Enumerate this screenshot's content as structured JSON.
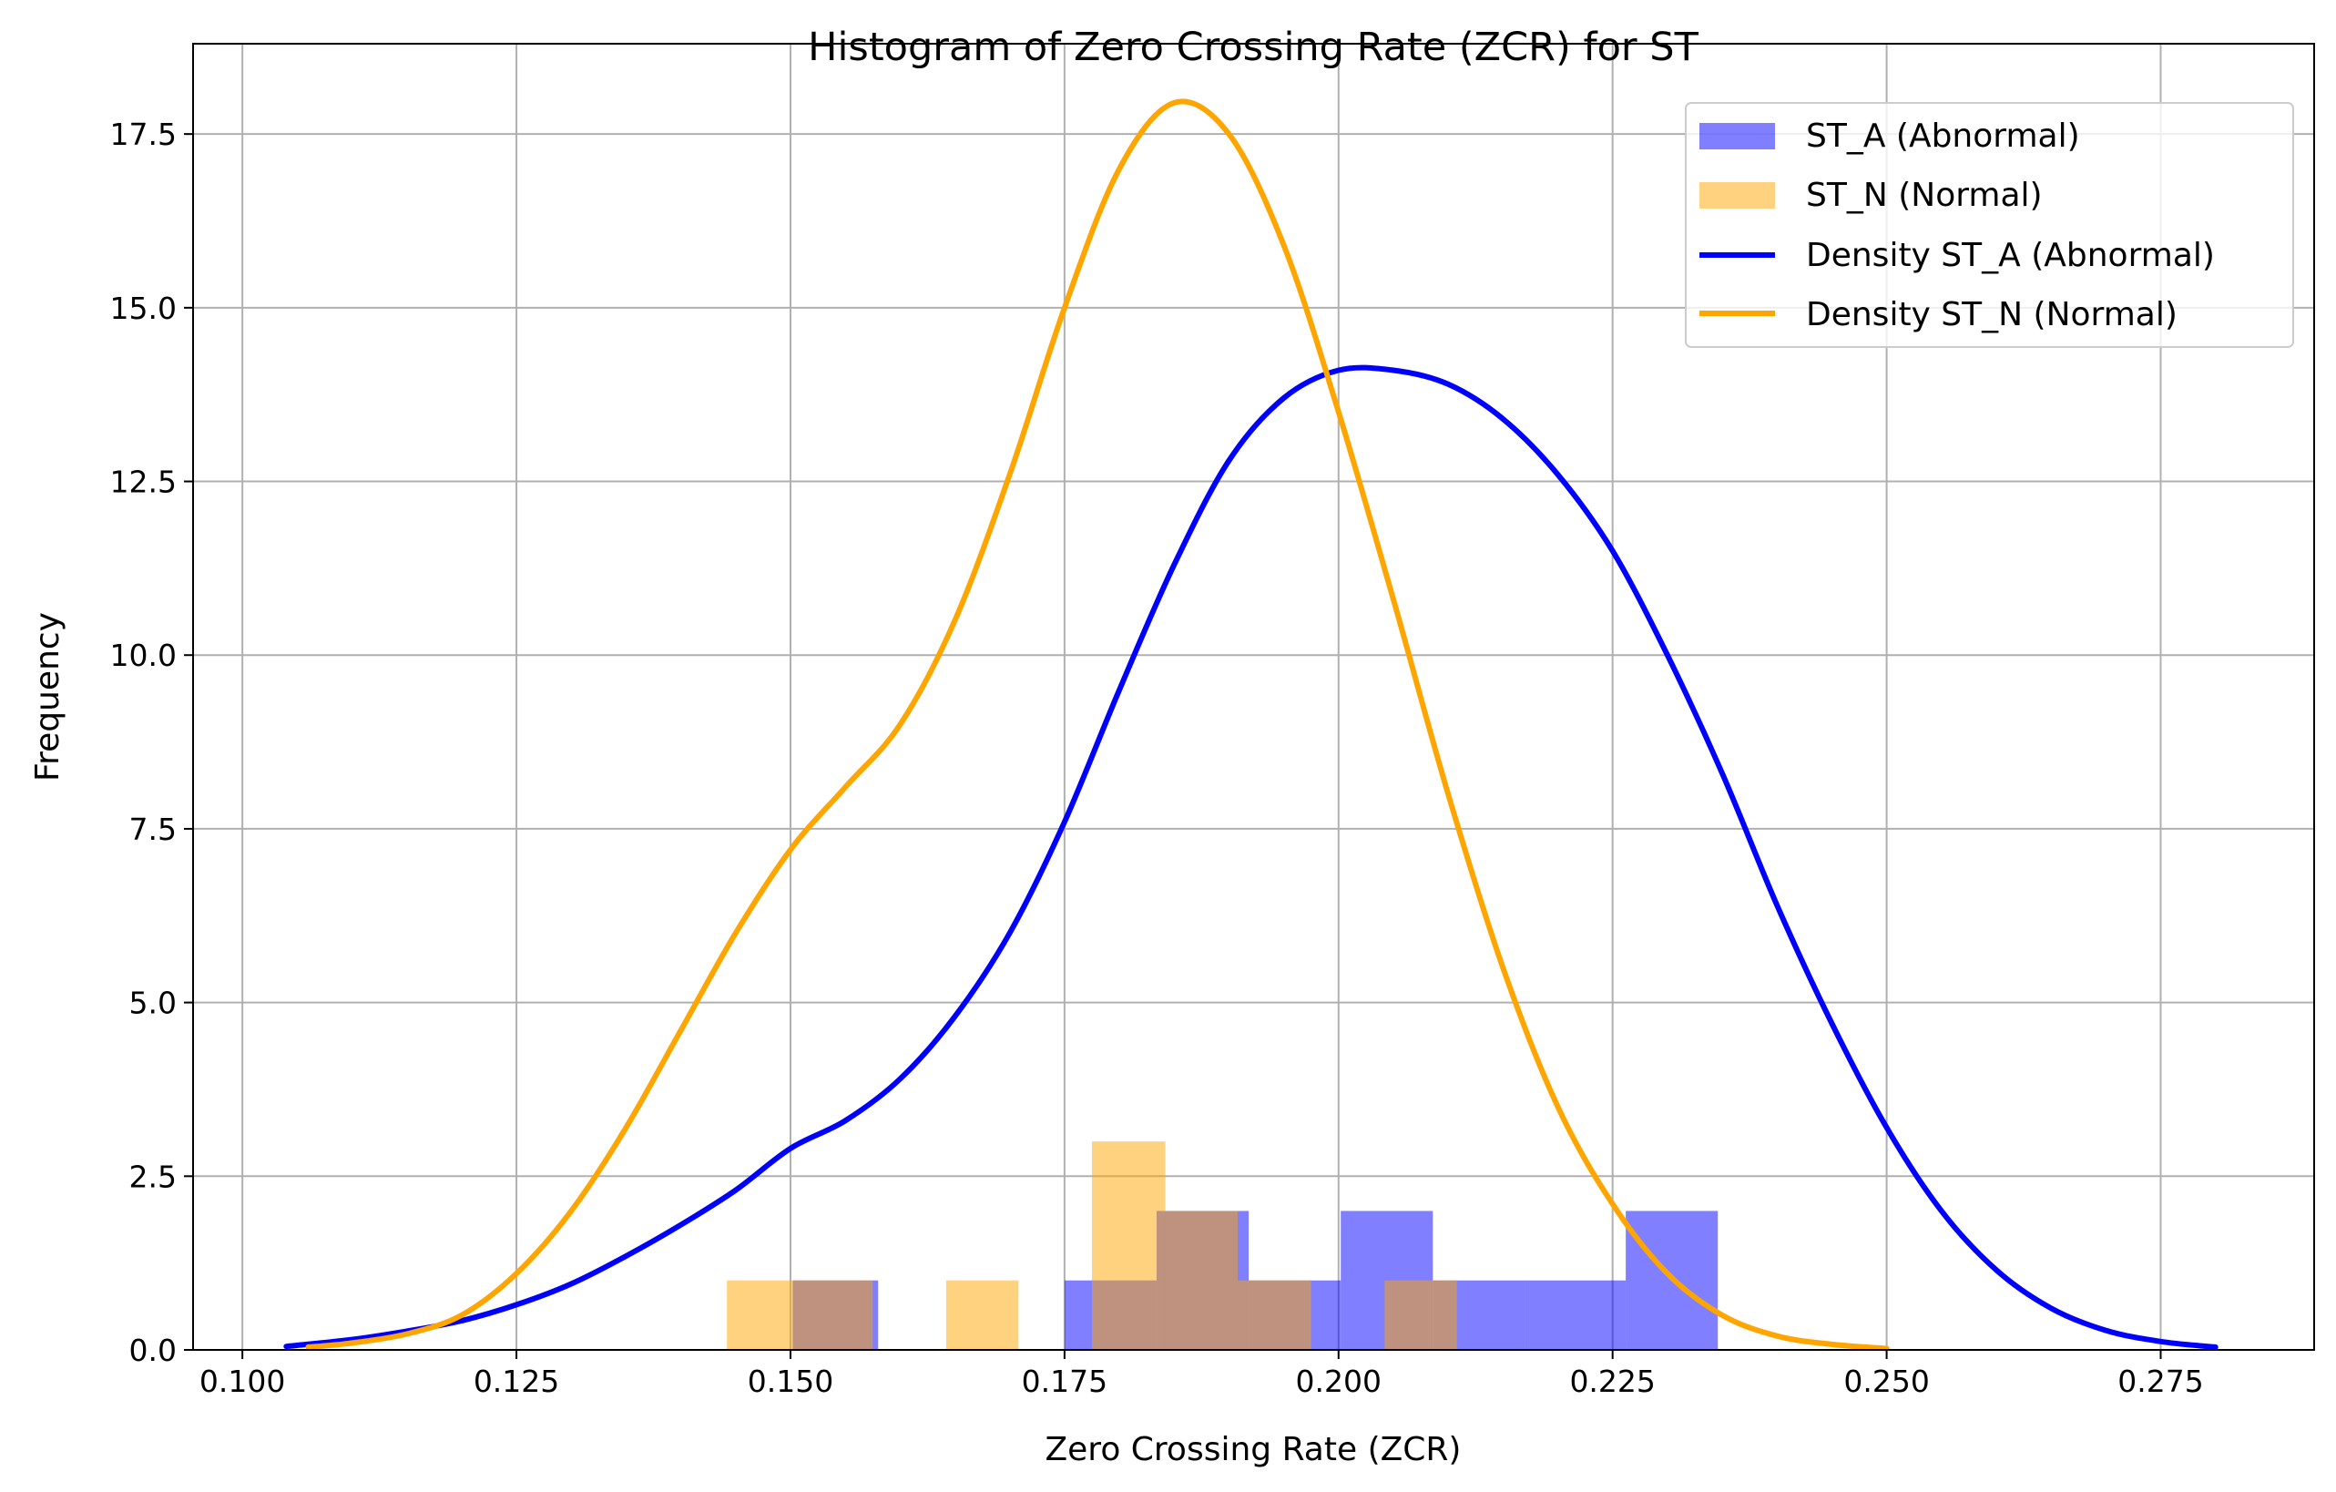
{
  "chart_data": {
    "type": "bar",
    "title": "Histogram of Zero Crossing Rate (ZCR) for ST",
    "xlabel": "Zero Crossing Rate (ZCR)",
    "ylabel": "Frequency",
    "xlim": [
      0.0955,
      0.289
    ],
    "ylim": [
      0,
      18.8
    ],
    "xticks": [
      0.1,
      0.125,
      0.15,
      0.175,
      0.2,
      0.225,
      0.25,
      0.275
    ],
    "xtick_labels": [
      "0.100",
      "0.125",
      "0.150",
      "0.175",
      "0.200",
      "0.225",
      "0.250",
      "0.275"
    ],
    "yticks": [
      0,
      2.5,
      5,
      7.5,
      10,
      12.5,
      15,
      17.5
    ],
    "ytick_labels": [
      "0.0",
      "2.5",
      "5.0",
      "7.5",
      "10.0",
      "12.5",
      "15.0",
      "17.5"
    ],
    "grid": true,
    "legend_position": "top-right",
    "histograms": [
      {
        "name": "ST_A (Abnormal)",
        "color": "#0000ff",
        "opacity": 0.5,
        "bins": [
          {
            "x0": 0.1502,
            "x1": 0.158,
            "value": 1
          },
          {
            "x0": 0.175,
            "x1": 0.1834,
            "value": 1
          },
          {
            "x0": 0.1834,
            "x1": 0.1918,
            "value": 2
          },
          {
            "x0": 0.1918,
            "x1": 0.2002,
            "value": 1
          },
          {
            "x0": 0.2002,
            "x1": 0.2086,
            "value": 2
          },
          {
            "x0": 0.2086,
            "x1": 0.217,
            "value": 1
          },
          {
            "x0": 0.217,
            "x1": 0.2262,
            "value": 1
          },
          {
            "x0": 0.2262,
            "x1": 0.2346,
            "value": 2
          }
        ]
      },
      {
        "name": "ST_N (Normal)",
        "color": "#ffa500",
        "opacity": 0.5,
        "bins": [
          {
            "x0": 0.1442,
            "x1": 0.1508,
            "value": 1
          },
          {
            "x0": 0.1508,
            "x1": 0.1575,
            "value": 1
          },
          {
            "x0": 0.1642,
            "x1": 0.1708,
            "value": 1
          },
          {
            "x0": 0.1775,
            "x1": 0.1842,
            "value": 3
          },
          {
            "x0": 0.1842,
            "x1": 0.1908,
            "value": 2
          },
          {
            "x0": 0.1908,
            "x1": 0.1975,
            "value": 1
          },
          {
            "x0": 0.2042,
            "x1": 0.2108,
            "value": 1
          }
        ]
      }
    ],
    "series": [
      {
        "name": "Density ST_A (Abnormal)",
        "type": "line",
        "color": "#0000ff",
        "points": [
          [
            0.104,
            0.05
          ],
          [
            0.11,
            0.15
          ],
          [
            0.115,
            0.27
          ],
          [
            0.12,
            0.42
          ],
          [
            0.125,
            0.65
          ],
          [
            0.13,
            0.95
          ],
          [
            0.135,
            1.35
          ],
          [
            0.14,
            1.8
          ],
          [
            0.145,
            2.3
          ],
          [
            0.15,
            2.9
          ],
          [
            0.155,
            3.3
          ],
          [
            0.16,
            3.9
          ],
          [
            0.165,
            4.8
          ],
          [
            0.17,
            6.0
          ],
          [
            0.175,
            7.6
          ],
          [
            0.18,
            9.5
          ],
          [
            0.185,
            11.3
          ],
          [
            0.19,
            12.8
          ],
          [
            0.195,
            13.7
          ],
          [
            0.2,
            14.1
          ],
          [
            0.205,
            14.1
          ],
          [
            0.21,
            13.9
          ],
          [
            0.215,
            13.4
          ],
          [
            0.22,
            12.6
          ],
          [
            0.225,
            11.5
          ],
          [
            0.23,
            10.0
          ],
          [
            0.235,
            8.3
          ],
          [
            0.24,
            6.4
          ],
          [
            0.245,
            4.7
          ],
          [
            0.25,
            3.2
          ],
          [
            0.255,
            2.0
          ],
          [
            0.26,
            1.15
          ],
          [
            0.265,
            0.6
          ],
          [
            0.27,
            0.28
          ],
          [
            0.275,
            0.12
          ],
          [
            0.28,
            0.04
          ]
        ]
      },
      {
        "name": "Density ST_N (Normal)",
        "type": "line",
        "color": "#ffa500",
        "points": [
          [
            0.106,
            0.04
          ],
          [
            0.11,
            0.1
          ],
          [
            0.115,
            0.23
          ],
          [
            0.12,
            0.5
          ],
          [
            0.125,
            1.1
          ],
          [
            0.13,
            2.0
          ],
          [
            0.135,
            3.2
          ],
          [
            0.14,
            4.6
          ],
          [
            0.145,
            6.0
          ],
          [
            0.15,
            7.2
          ],
          [
            0.155,
            8.1
          ],
          [
            0.16,
            9.0
          ],
          [
            0.165,
            10.5
          ],
          [
            0.17,
            12.6
          ],
          [
            0.175,
            15.0
          ],
          [
            0.18,
            17.0
          ],
          [
            0.185,
            17.95
          ],
          [
            0.19,
            17.5
          ],
          [
            0.195,
            15.9
          ],
          [
            0.2,
            13.5
          ],
          [
            0.205,
            10.8
          ],
          [
            0.21,
            8.0
          ],
          [
            0.215,
            5.5
          ],
          [
            0.22,
            3.5
          ],
          [
            0.225,
            2.1
          ],
          [
            0.23,
            1.1
          ],
          [
            0.235,
            0.5
          ],
          [
            0.24,
            0.2
          ],
          [
            0.245,
            0.08
          ],
          [
            0.25,
            0.02
          ]
        ]
      }
    ]
  }
}
